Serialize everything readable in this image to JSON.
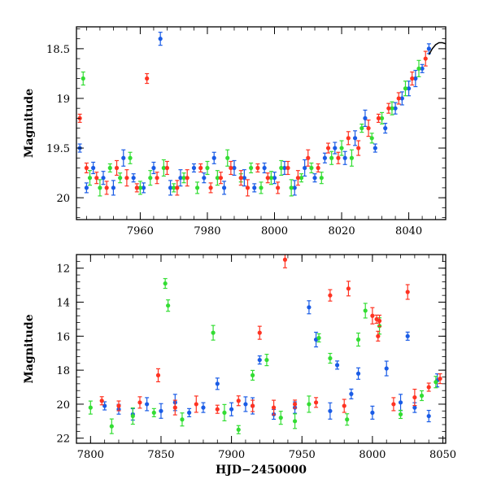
{
  "chart_data": [
    {
      "type": "scatter",
      "panel": "top",
      "xlabel": "",
      "ylabel": "Magnitude",
      "xlim": [
        7941,
        8051
      ],
      "ylim": [
        20.22,
        18.28
      ],
      "y_inverted": true,
      "x_ticks": [
        7960,
        7980,
        8000,
        8020,
        8040
      ],
      "y_ticks": [
        18.5,
        19,
        19.5,
        20
      ],
      "y_tick_labels": [
        "18.5",
        "19",
        "19.5",
        "20"
      ],
      "grid": false,
      "legend": "none",
      "error_bars": true,
      "model_curve": {
        "color": "#000000",
        "x": [
          8046,
          8047,
          8048,
          8049,
          8050,
          8051
        ],
        "y": [
          18.56,
          18.5,
          18.46,
          18.44,
          18.44,
          18.45
        ]
      },
      "series": [
        {
          "color": "#1a5ce6",
          "x": [
            7942,
            7944,
            7946,
            7949,
            7952,
            7955,
            7958,
            7961,
            7964,
            7966,
            7969,
            7972,
            7976,
            7979,
            7982,
            7985,
            7988,
            7991,
            7994,
            7997,
            8000,
            8003,
            8006,
            8009,
            8012,
            8015,
            8018,
            8021,
            8024,
            8027,
            8030,
            8033,
            8036,
            8038,
            8040,
            8042,
            8044,
            8046
          ],
          "y": [
            19.5,
            19.9,
            19.7,
            19.8,
            19.9,
            19.6,
            19.8,
            19.9,
            19.7,
            18.4,
            19.9,
            19.8,
            19.7,
            19.8,
            19.6,
            19.9,
            19.7,
            19.8,
            19.9,
            19.7,
            19.8,
            19.7,
            19.9,
            19.7,
            19.8,
            19.6,
            19.5,
            19.6,
            19.4,
            19.2,
            19.5,
            19.3,
            19.1,
            19.0,
            18.9,
            18.8,
            18.7,
            18.5
          ]
        },
        {
          "color": "#33dd33",
          "x": [
            7943,
            7945,
            7948,
            7951,
            7954,
            7957,
            7960,
            7963,
            7967,
            7970,
            7973,
            7977,
            7980,
            7983,
            7986,
            7990,
            7993,
            7996,
            7999,
            8002,
            8005,
            8008,
            8011,
            8014,
            8017,
            8020,
            8023,
            8026,
            8029,
            8032,
            8035,
            8039,
            8043
          ],
          "y": [
            18.8,
            19.8,
            19.9,
            19.7,
            19.8,
            19.6,
            19.9,
            19.8,
            19.7,
            19.9,
            19.8,
            19.9,
            19.7,
            19.8,
            19.6,
            19.8,
            19.7,
            19.9,
            19.8,
            19.7,
            19.9,
            19.8,
            19.7,
            19.8,
            19.6,
            19.5,
            19.6,
            19.3,
            19.4,
            19.2,
            19.1,
            18.9,
            18.7
          ]
        },
        {
          "color": "#ff3322",
          "x": [
            7942,
            7944,
            7947,
            7950,
            7953,
            7956,
            7959,
            7962,
            7965,
            7968,
            7971,
            7974,
            7978,
            7981,
            7984,
            7987,
            7990,
            7992,
            7995,
            7998,
            8001,
            8004,
            8007,
            8010,
            8013,
            8016,
            8019,
            8022,
            8025,
            8028,
            8031,
            8034,
            8037,
            8041,
            8045
          ],
          "y": [
            19.2,
            19.7,
            19.8,
            19.9,
            19.7,
            19.8,
            19.9,
            18.8,
            19.8,
            19.7,
            19.9,
            19.8,
            19.7,
            19.9,
            19.8,
            19.7,
            19.8,
            19.9,
            19.7,
            19.8,
            19.9,
            19.7,
            19.8,
            19.6,
            19.7,
            19.5,
            19.6,
            19.4,
            19.5,
            19.3,
            19.2,
            19.1,
            19.0,
            18.8,
            18.6
          ]
        }
      ]
    },
    {
      "type": "scatter",
      "panel": "bottom",
      "xlabel": "HJD−2450000",
      "ylabel": "Magnitude",
      "xlim": [
        7790,
        8052
      ],
      "ylim": [
        22.3,
        11.2
      ],
      "y_inverted": true,
      "x_ticks": [
        7800,
        7850,
        7900,
        7950,
        8000,
        8050
      ],
      "y_ticks": [
        12,
        14,
        16,
        18,
        20,
        22
      ],
      "grid": false,
      "legend": "none",
      "error_bars": true,
      "series": [
        {
          "color": "#1a5ce6",
          "x": [
            7810,
            7820,
            7830,
            7840,
            7850,
            7860,
            7870,
            7880,
            7890,
            7900,
            7910,
            7915,
            7920,
            7930,
            7945,
            7955,
            7960,
            7970,
            7975,
            7985,
            7990,
            8000,
            8010,
            8020,
            8025,
            8030,
            8040,
            8046
          ],
          "y": [
            20.1,
            20.3,
            20.6,
            20.0,
            20.4,
            19.9,
            20.5,
            20.2,
            18.8,
            20.3,
            20.0,
            20.1,
            17.4,
            20.6,
            20.2,
            14.3,
            16.2,
            20.4,
            17.7,
            19.4,
            18.2,
            20.5,
            17.9,
            19.9,
            16.0,
            20.2,
            20.7,
            18.6
          ]
        },
        {
          "color": "#33dd33",
          "x": [
            7800,
            7815,
            7830,
            7845,
            7853,
            7855,
            7865,
            7887,
            7895,
            7905,
            7915,
            7925,
            7935,
            7945,
            7955,
            7962,
            7970,
            7982,
            7990,
            7995,
            8005,
            8020,
            8035,
            8045
          ],
          "y": [
            20.2,
            21.3,
            20.7,
            20.5,
            12.9,
            14.2,
            20.9,
            15.8,
            20.5,
            21.5,
            18.3,
            17.4,
            20.8,
            21.0,
            20.0,
            16.1,
            17.3,
            20.9,
            16.2,
            14.5,
            15.4,
            20.6,
            19.5,
            18.7
          ]
        },
        {
          "color": "#ff3322",
          "x": [
            7808,
            7820,
            7835,
            7848,
            7860,
            7875,
            7890,
            7905,
            7915,
            7920,
            7930,
            7938,
            7945,
            7960,
            7970,
            7980,
            7983,
            8000,
            8003,
            8004,
            8005,
            8015,
            8025,
            8030,
            8040,
            8048
          ],
          "y": [
            19.8,
            20.1,
            19.9,
            18.3,
            20.2,
            20.0,
            20.3,
            19.8,
            20.1,
            15.8,
            20.2,
            11.5,
            20.0,
            19.9,
            13.6,
            20.1,
            13.2,
            14.8,
            15.0,
            16.0,
            15.1,
            20.0,
            13.4,
            19.6,
            19.0,
            18.5
          ]
        }
      ]
    }
  ]
}
